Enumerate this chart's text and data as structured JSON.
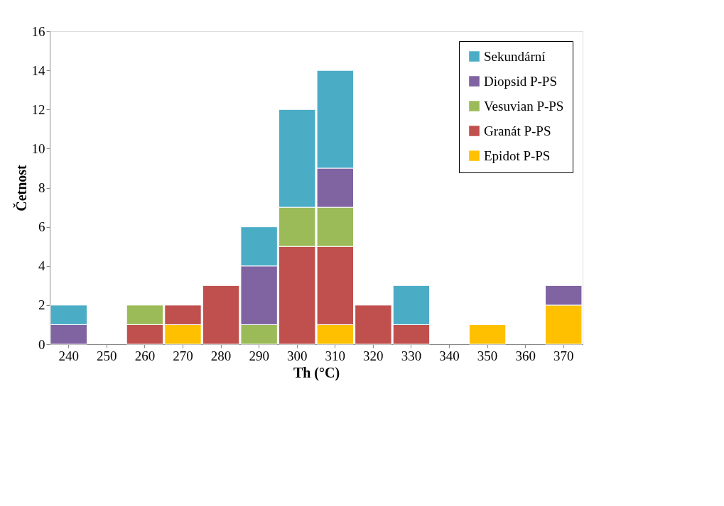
{
  "chart_data": {
    "type": "bar",
    "stacked": true,
    "xlabel": "Th (°C)",
    "ylabel": "Četnost",
    "categories": [
      "240",
      "250",
      "260",
      "270",
      "280",
      "290",
      "300",
      "310",
      "320",
      "330",
      "340",
      "350",
      "360",
      "370"
    ],
    "series": [
      {
        "name": "Epidot P-PS",
        "color": "#ffc000",
        "values": [
          null,
          null,
          null,
          1,
          null,
          null,
          null,
          1,
          null,
          null,
          null,
          1,
          null,
          2
        ]
      },
      {
        "name": "Granát P-PS",
        "color": "#c0504d",
        "values": [
          null,
          null,
          1,
          1,
          3,
          null,
          5,
          4,
          2,
          1,
          null,
          null,
          null,
          null
        ]
      },
      {
        "name": "Vesuvian P-PS",
        "color": "#9bbb59",
        "values": [
          null,
          null,
          1,
          null,
          null,
          1,
          2,
          2,
          null,
          null,
          null,
          null,
          null,
          null
        ]
      },
      {
        "name": "Diopsid P-PS",
        "color": "#8064a2",
        "values": [
          1,
          null,
          null,
          null,
          null,
          3,
          null,
          2,
          null,
          null,
          null,
          null,
          null,
          1
        ]
      },
      {
        "name": "Sekundární",
        "color": "#4bacc6",
        "values": [
          1,
          null,
          null,
          null,
          null,
          2,
          5,
          5,
          null,
          2,
          null,
          null,
          null,
          null
        ]
      }
    ],
    "ylim": [
      0,
      16
    ],
    "yticks": [
      0,
      2,
      4,
      6,
      8,
      10,
      12,
      14,
      16
    ],
    "grid": false,
    "legend": "top right"
  }
}
